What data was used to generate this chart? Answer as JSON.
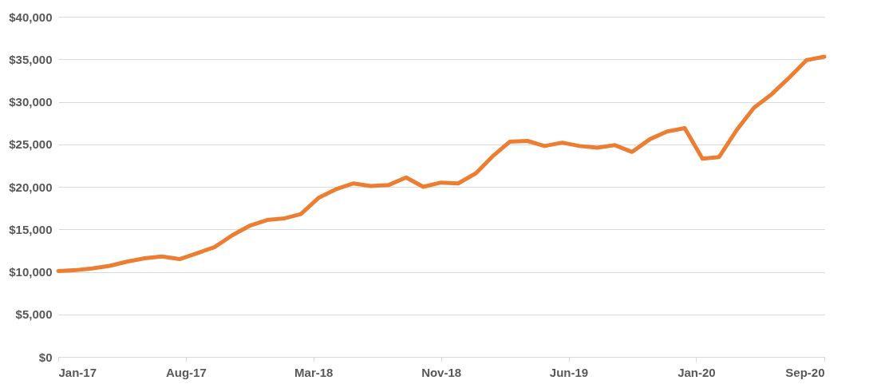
{
  "chart_data": {
    "type": "line",
    "x": [
      "2017-01",
      "2017-02",
      "2017-03",
      "2017-04",
      "2017-05",
      "2017-06",
      "2017-07",
      "2017-08",
      "2017-09",
      "2017-10",
      "2017-11",
      "2017-12",
      "2018-01",
      "2018-02",
      "2018-03",
      "2018-04",
      "2018-05",
      "2018-06",
      "2018-07",
      "2018-08",
      "2018-09",
      "2018-10",
      "2018-11",
      "2018-12",
      "2019-01",
      "2019-02",
      "2019-03",
      "2019-04",
      "2019-05",
      "2019-06",
      "2019-07",
      "2019-08",
      "2019-09",
      "2019-10",
      "2019-11",
      "2019-12",
      "2020-01",
      "2020-02",
      "2020-03",
      "2020-04",
      "2020-05",
      "2020-06",
      "2020-07",
      "2020-08",
      "2020-09"
    ],
    "series": [
      {
        "color": "#ed7d31",
        "values": [
          10100,
          10200,
          10400,
          10700,
          11200,
          11600,
          11800,
          11500,
          12200,
          12900,
          14300,
          15400,
          16100,
          16300,
          16800,
          18700,
          19700,
          20400,
          20100,
          20200,
          21100,
          20000,
          20500,
          20400,
          21600,
          23700,
          25300,
          25400,
          24800,
          25200,
          24800,
          24600,
          24900,
          24100,
          25600,
          26500,
          26900,
          23300,
          23500,
          26700,
          29300,
          30900,
          32800,
          34900,
          35300
        ]
      }
    ],
    "xlim": [
      "2017-01-01",
      "2020-09-01"
    ],
    "xticks": [
      {
        "value": "2017-01-01",
        "label": "Jan-17"
      },
      {
        "value": "2017-08-12",
        "label": "Aug-17"
      },
      {
        "value": "2018-03-23",
        "label": "Mar-18"
      },
      {
        "value": "2018-11-01",
        "label": "Nov-18"
      },
      {
        "value": "2019-06-12",
        "label": "Jun-19"
      },
      {
        "value": "2020-01-21",
        "label": "Jan-20"
      },
      {
        "value": "2020-09-01",
        "label": "Sep-20"
      }
    ],
    "ylim": [
      0,
      40000
    ],
    "yticks": [
      {
        "value": 0,
        "label": "$0"
      },
      {
        "value": 5000,
        "label": "$5,000"
      },
      {
        "value": 10000,
        "label": "$10,000"
      },
      {
        "value": 15000,
        "label": "$15,000"
      },
      {
        "value": 20000,
        "label": "$20,000"
      },
      {
        "value": 25000,
        "label": "$25,000"
      },
      {
        "value": 30000,
        "label": "$30,000"
      },
      {
        "value": 35000,
        "label": "$35,000"
      },
      {
        "value": 40000,
        "label": "$40,000"
      }
    ],
    "grid": "y",
    "marker": "none",
    "line_style": "solid"
  }
}
